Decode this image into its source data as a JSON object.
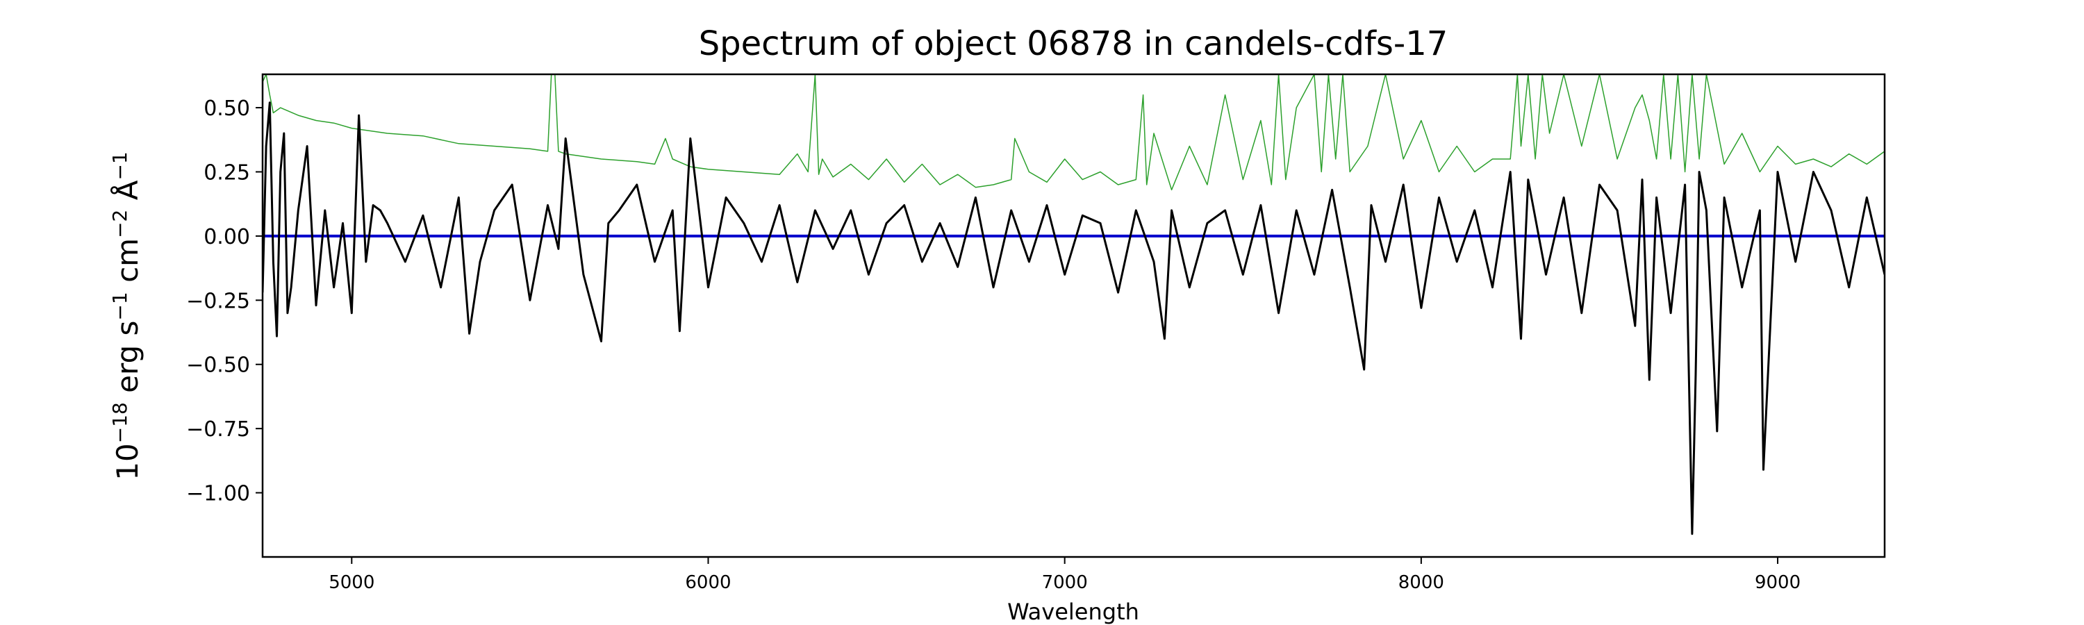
{
  "chart_data": {
    "type": "line",
    "title": "Spectrum of object 06878 in candels-cdfs-17",
    "xlabel": "Wavelength",
    "ylabel_parts": [
      "10",
      "−18",
      " erg s",
      "−1",
      " cm",
      "−2",
      " Å",
      "−1"
    ],
    "xlim": [
      4750,
      9300
    ],
    "ylim": [
      -1.25,
      0.63
    ],
    "xticks": [
      5000,
      6000,
      7000,
      8000,
      9000
    ],
    "xtick_labels": [
      "5000",
      "6000",
      "7000",
      "8000",
      "9000"
    ],
    "yticks": [
      0.5,
      0.25,
      0.0,
      -0.25,
      -0.5,
      -0.75,
      -1.0
    ],
    "ytick_labels": [
      "0.50",
      "0.25",
      "0.00",
      "−0.25",
      "−0.50",
      "−0.75",
      "−1.00"
    ],
    "grid": false,
    "colors": {
      "flux": "#000000",
      "error": "#2ca02c",
      "model": "#0000cc"
    },
    "series": [
      {
        "id": "flux",
        "x": [
          4750,
          4760,
          4770,
          4780,
          4790,
          4800,
          4810,
          4820,
          4830,
          4850,
          4875,
          4900,
          4925,
          4950,
          4975,
          5000,
          5020,
          5040,
          5060,
          5080,
          5100,
          5150,
          5200,
          5250,
          5300,
          5330,
          5360,
          5400,
          5450,
          5500,
          5550,
          5580,
          5600,
          5650,
          5700,
          5720,
          5750,
          5800,
          5850,
          5900,
          5920,
          5950,
          6000,
          6050,
          6100,
          6150,
          6200,
          6250,
          6300,
          6350,
          6400,
          6450,
          6500,
          6550,
          6600,
          6650,
          6700,
          6750,
          6800,
          6850,
          6900,
          6950,
          7000,
          7050,
          7100,
          7150,
          7200,
          7250,
          7280,
          7300,
          7350,
          7400,
          7450,
          7500,
          7550,
          7600,
          7650,
          7700,
          7750,
          7800,
          7840,
          7860,
          7900,
          7950,
          8000,
          8050,
          8100,
          8150,
          8200,
          8250,
          8280,
          8300,
          8350,
          8400,
          8450,
          8500,
          8550,
          8600,
          8620,
          8640,
          8660,
          8700,
          8740,
          8760,
          8770,
          8780,
          8800,
          8830,
          8850,
          8900,
          8950,
          8960,
          9000,
          9050,
          9100,
          9150,
          9200,
          9250,
          9300
        ],
        "y": [
          -0.22,
          0.35,
          0.52,
          -0.1,
          -0.39,
          0.25,
          0.4,
          -0.3,
          -0.2,
          0.1,
          0.35,
          -0.27,
          0.1,
          -0.2,
          0.05,
          -0.3,
          0.47,
          -0.1,
          0.12,
          0.1,
          0.05,
          -0.1,
          0.08,
          -0.2,
          0.15,
          -0.38,
          -0.1,
          0.1,
          0.2,
          -0.25,
          0.12,
          -0.05,
          0.38,
          -0.15,
          -0.41,
          0.05,
          0.1,
          0.2,
          -0.1,
          0.1,
          -0.37,
          0.38,
          -0.2,
          0.15,
          0.05,
          -0.1,
          0.12,
          -0.18,
          0.1,
          -0.05,
          0.1,
          -0.15,
          0.05,
          0.12,
          -0.1,
          0.05,
          -0.12,
          0.15,
          -0.2,
          0.1,
          -0.1,
          0.12,
          -0.15,
          0.08,
          0.05,
          -0.22,
          0.1,
          -0.1,
          -0.4,
          0.1,
          -0.2,
          0.05,
          0.1,
          -0.15,
          0.12,
          -0.3,
          0.1,
          -0.15,
          0.18,
          -0.2,
          -0.52,
          0.12,
          -0.1,
          0.2,
          -0.28,
          0.15,
          -0.1,
          0.1,
          -0.2,
          0.25,
          -0.4,
          0.22,
          -0.15,
          0.15,
          -0.3,
          0.2,
          0.1,
          -0.35,
          0.22,
          -0.56,
          0.15,
          -0.3,
          0.2,
          -1.16,
          -0.54,
          0.25,
          0.1,
          -0.76,
          0.15,
          -0.2,
          0.1,
          -0.91,
          0.25,
          -0.1,
          0.25,
          0.1,
          -0.2,
          0.15,
          -0.15
        ]
      },
      {
        "id": "error",
        "x": [
          4750,
          4760,
          4770,
          4780,
          4800,
          4850,
          4900,
          4950,
          5000,
          5100,
          5200,
          5300,
          5400,
          5500,
          5550,
          5560,
          5570,
          5580,
          5600,
          5700,
          5800,
          5850,
          5880,
          5900,
          5950,
          6000,
          6100,
          6200,
          6250,
          6280,
          6300,
          6310,
          6320,
          6350,
          6400,
          6450,
          6500,
          6550,
          6600,
          6650,
          6700,
          6750,
          6800,
          6850,
          6860,
          6900,
          6950,
          7000,
          7050,
          7100,
          7150,
          7200,
          7220,
          7230,
          7250,
          7300,
          7350,
          7400,
          7450,
          7500,
          7550,
          7580,
          7600,
          7620,
          7650,
          7700,
          7720,
          7740,
          7760,
          7780,
          7800,
          7850,
          7900,
          7950,
          8000,
          8050,
          8100,
          8150,
          8200,
          8250,
          8270,
          8280,
          8300,
          8320,
          8340,
          8360,
          8400,
          8450,
          8500,
          8550,
          8600,
          8620,
          8640,
          8660,
          8680,
          8700,
          8720,
          8740,
          8760,
          8780,
          8800,
          8850,
          8900,
          8950,
          9000,
          9050,
          9100,
          9150,
          9200,
          9250,
          9300
        ],
        "y": [
          0.6,
          0.63,
          0.55,
          0.48,
          0.5,
          0.47,
          0.45,
          0.44,
          0.42,
          0.4,
          0.39,
          0.36,
          0.35,
          0.34,
          0.33,
          0.63,
          0.63,
          0.33,
          0.32,
          0.3,
          0.29,
          0.28,
          0.38,
          0.3,
          0.27,
          0.26,
          0.25,
          0.24,
          0.32,
          0.25,
          0.63,
          0.24,
          0.3,
          0.23,
          0.28,
          0.22,
          0.3,
          0.21,
          0.28,
          0.2,
          0.24,
          0.19,
          0.2,
          0.22,
          0.38,
          0.25,
          0.21,
          0.3,
          0.22,
          0.25,
          0.2,
          0.22,
          0.55,
          0.2,
          0.4,
          0.18,
          0.35,
          0.2,
          0.55,
          0.22,
          0.45,
          0.2,
          0.63,
          0.22,
          0.5,
          0.63,
          0.25,
          0.63,
          0.3,
          0.63,
          0.25,
          0.35,
          0.63,
          0.3,
          0.45,
          0.25,
          0.35,
          0.25,
          0.3,
          0.3,
          0.63,
          0.35,
          0.63,
          0.3,
          0.63,
          0.4,
          0.63,
          0.35,
          0.63,
          0.3,
          0.5,
          0.55,
          0.45,
          0.3,
          0.63,
          0.3,
          0.63,
          0.25,
          0.63,
          0.3,
          0.63,
          0.28,
          0.4,
          0.25,
          0.35,
          0.28,
          0.3,
          0.27,
          0.32,
          0.28,
          0.33
        ]
      },
      {
        "id": "model",
        "x": [
          4750,
          9300
        ],
        "y": [
          0.0,
          0.0
        ]
      }
    ]
  }
}
